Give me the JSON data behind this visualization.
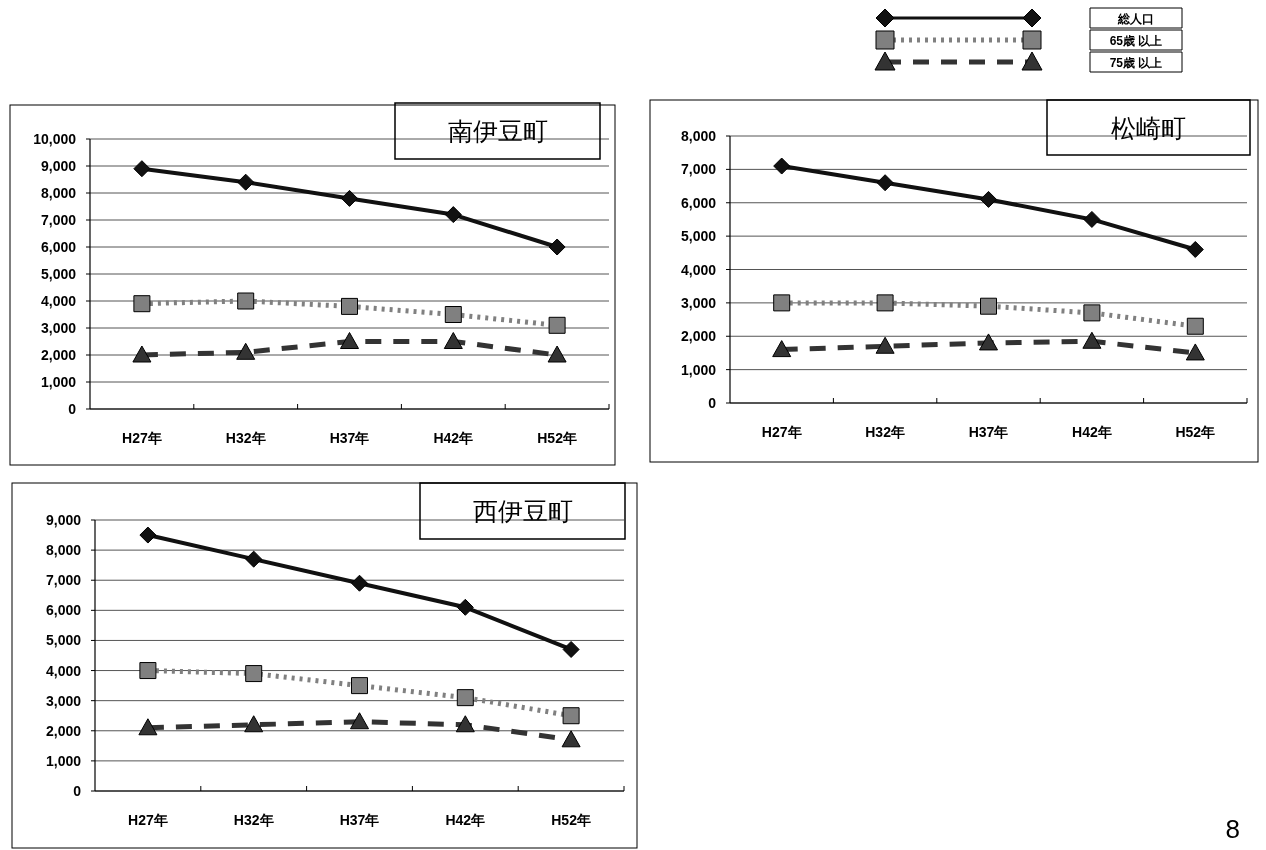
{
  "chart_data": [
    {
      "type": "line",
      "title": "南伊豆町",
      "categories": [
        "H27年",
        "H32年",
        "H37年",
        "H42年",
        "H52年"
      ],
      "grid": "y",
      "legend": "top right",
      "ylim": [
        0,
        10000
      ],
      "yticks": [
        {
          "value": 0,
          "label": "0"
        },
        {
          "value": 1000,
          "label": "1,000"
        },
        {
          "value": 2000,
          "label": "2,000"
        },
        {
          "value": 3000,
          "label": "3,000"
        },
        {
          "value": 4000,
          "label": "4,000"
        },
        {
          "value": 5000,
          "label": "5,000"
        },
        {
          "value": 6000,
          "label": "6,000"
        },
        {
          "value": 7000,
          "label": "7,000"
        },
        {
          "value": 8000,
          "label": "8,000"
        },
        {
          "value": 9000,
          "label": "9,000"
        },
        {
          "value": 10000,
          "label": "10,000"
        }
      ],
      "series": [
        {
          "name": "総人口",
          "color": "#111111",
          "marker": "diamond",
          "line_style": "solid",
          "values": [
            8900,
            8400,
            7800,
            7200,
            6000
          ]
        },
        {
          "name": "65歳 以上",
          "color": "#808080",
          "marker": "square",
          "line_style": "dotted",
          "values": [
            3900,
            4000,
            3800,
            3500,
            3100
          ]
        },
        {
          "name": "75歳 以上",
          "color": "#333333",
          "marker": "triangle",
          "line_style": "dashed",
          "values": [
            2000,
            2100,
            2500,
            2500,
            2000
          ]
        }
      ]
    },
    {
      "type": "line",
      "title": "松崎町",
      "categories": [
        "H27年",
        "H32年",
        "H37年",
        "H42年",
        "H52年"
      ],
      "grid": "y",
      "ylim": [
        0,
        8000
      ],
      "yticks": [
        {
          "value": 0,
          "label": "0"
        },
        {
          "value": 1000,
          "label": "1,000"
        },
        {
          "value": 2000,
          "label": "2,000"
        },
        {
          "value": 3000,
          "label": "3,000"
        },
        {
          "value": 4000,
          "label": "4,000"
        },
        {
          "value": 5000,
          "label": "5,000"
        },
        {
          "value": 6000,
          "label": "6,000"
        },
        {
          "value": 7000,
          "label": "7,000"
        },
        {
          "value": 8000,
          "label": "8,000"
        }
      ],
      "series": [
        {
          "color": "#111111",
          "marker": "diamond",
          "line_style": "solid",
          "values": [
            7100,
            6600,
            6100,
            5500,
            4600
          ]
        },
        {
          "color": "#808080",
          "marker": "square",
          "line_style": "dotted",
          "values": [
            3000,
            3000,
            2900,
            2700,
            2300
          ]
        },
        {
          "color": "#333333",
          "marker": "triangle",
          "line_style": "dashed",
          "values": [
            1600,
            1700,
            1800,
            1850,
            1500
          ]
        }
      ]
    },
    {
      "type": "line",
      "title": "西伊豆町",
      "categories": [
        "H27年",
        "H32年",
        "H37年",
        "H42年",
        "H52年"
      ],
      "grid": "y",
      "annotations": [
        "8"
      ],
      "ylim": [
        0,
        9000
      ],
      "yticks": [
        {
          "value": 0,
          "label": "0"
        },
        {
          "value": 1000,
          "label": "1,000"
        },
        {
          "value": 2000,
          "label": "2,000"
        },
        {
          "value": 3000,
          "label": "3,000"
        },
        {
          "value": 4000,
          "label": "4,000"
        },
        {
          "value": 5000,
          "label": "5,000"
        },
        {
          "value": 6000,
          "label": "6,000"
        },
        {
          "value": 7000,
          "label": "7,000"
        },
        {
          "value": 8000,
          "label": "8,000"
        },
        {
          "value": 9000,
          "label": "9,000"
        }
      ],
      "series": [
        {
          "color": "#111111",
          "marker": "diamond",
          "line_style": "solid",
          "values": [
            8500,
            7700,
            6900,
            6100,
            4700
          ]
        },
        {
          "color": "#808080",
          "marker": "square",
          "line_style": "dotted",
          "values": [
            4000,
            3900,
            3500,
            3100,
            2500
          ]
        },
        {
          "color": "#333333",
          "marker": "triangle",
          "line_style": "dashed",
          "values": [
            2100,
            2200,
            2300,
            2200,
            1700
          ]
        }
      ]
    }
  ]
}
